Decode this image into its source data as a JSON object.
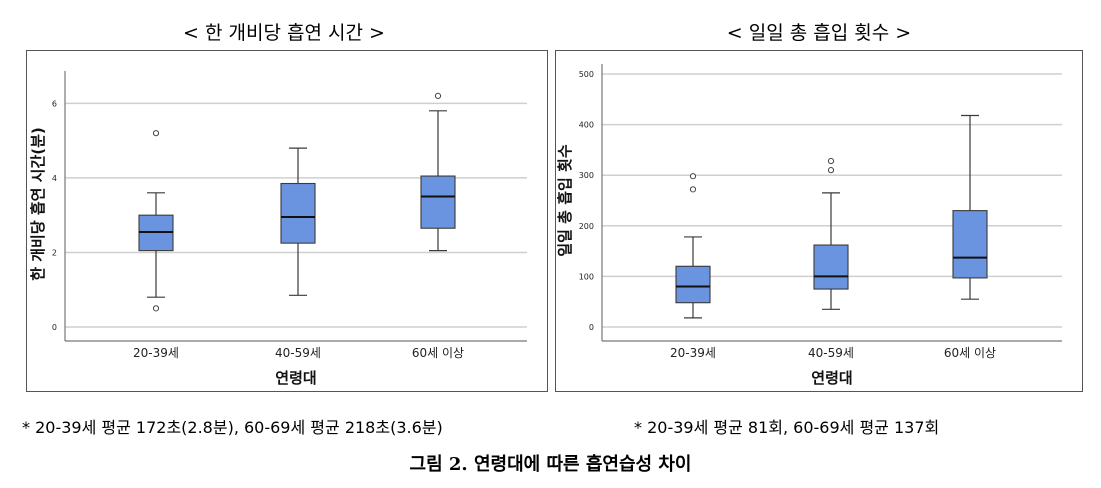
{
  "chart_data": [
    {
      "type": "box",
      "title": "< 한 개비당 흡연 시간 >",
      "xlabel": "연령대",
      "ylabel": "한 개비당 흡연 시간(분)",
      "ylim": [
        0,
        6.6
      ],
      "yticks": [
        0,
        2,
        4,
        6
      ],
      "ytick_labels": [
        "0",
        "2",
        "4",
        "6"
      ],
      "grid": true,
      "categories": [
        "20-39세",
        "40-59세",
        "60세 이상"
      ],
      "boxes": [
        {
          "whisker_low": 0.8,
          "q1": 2.05,
          "median": 2.55,
          "q3": 3.0,
          "whisker_high": 3.6,
          "outliers": [
            5.2,
            0.5
          ]
        },
        {
          "whisker_low": 0.85,
          "q1": 2.25,
          "median": 2.95,
          "q3": 3.85,
          "whisker_high": 4.8,
          "outliers": []
        },
        {
          "whisker_low": 2.05,
          "q1": 2.65,
          "median": 3.5,
          "q3": 4.05,
          "whisker_high": 5.8,
          "outliers": [
            6.2
          ]
        }
      ],
      "note": "* 20-39세 평균 172초(2.8분), 60-69세 평균 218초(3.6분)"
    },
    {
      "type": "box",
      "title": "< 일일 총 흡입 횟수 >",
      "xlabel": "연령대",
      "ylabel": "일일 총 흡입 횟수",
      "ylim": [
        0,
        500
      ],
      "yticks": [
        0,
        100,
        200,
        300,
        400,
        500
      ],
      "ytick_labels": [
        "0",
        "100",
        "200",
        "300",
        "400",
        "500"
      ],
      "grid": true,
      "categories": [
        "20-39세",
        "40-59세",
        "60세 이상"
      ],
      "boxes": [
        {
          "whisker_low": 18,
          "q1": 48,
          "median": 80,
          "q3": 120,
          "whisker_high": 178,
          "outliers": [
            298,
            272
          ]
        },
        {
          "whisker_low": 35,
          "q1": 75,
          "median": 100,
          "q3": 162,
          "whisker_high": 265,
          "outliers": [
            328,
            310
          ]
        },
        {
          "whisker_low": 55,
          "q1": 97,
          "median": 137,
          "q3": 230,
          "whisker_high": 418,
          "outliers": []
        }
      ],
      "note": "* 20-39세 평균 81회, 60-69세 평균 137회"
    }
  ],
  "caption": "그림 2. 연령대에 따른 흡연습성 차이",
  "colors": {
    "box_fill": "#6a94e0",
    "box_stroke": "#3a3a3a",
    "grid": "#cfcfcf",
    "axis": "#777777"
  }
}
